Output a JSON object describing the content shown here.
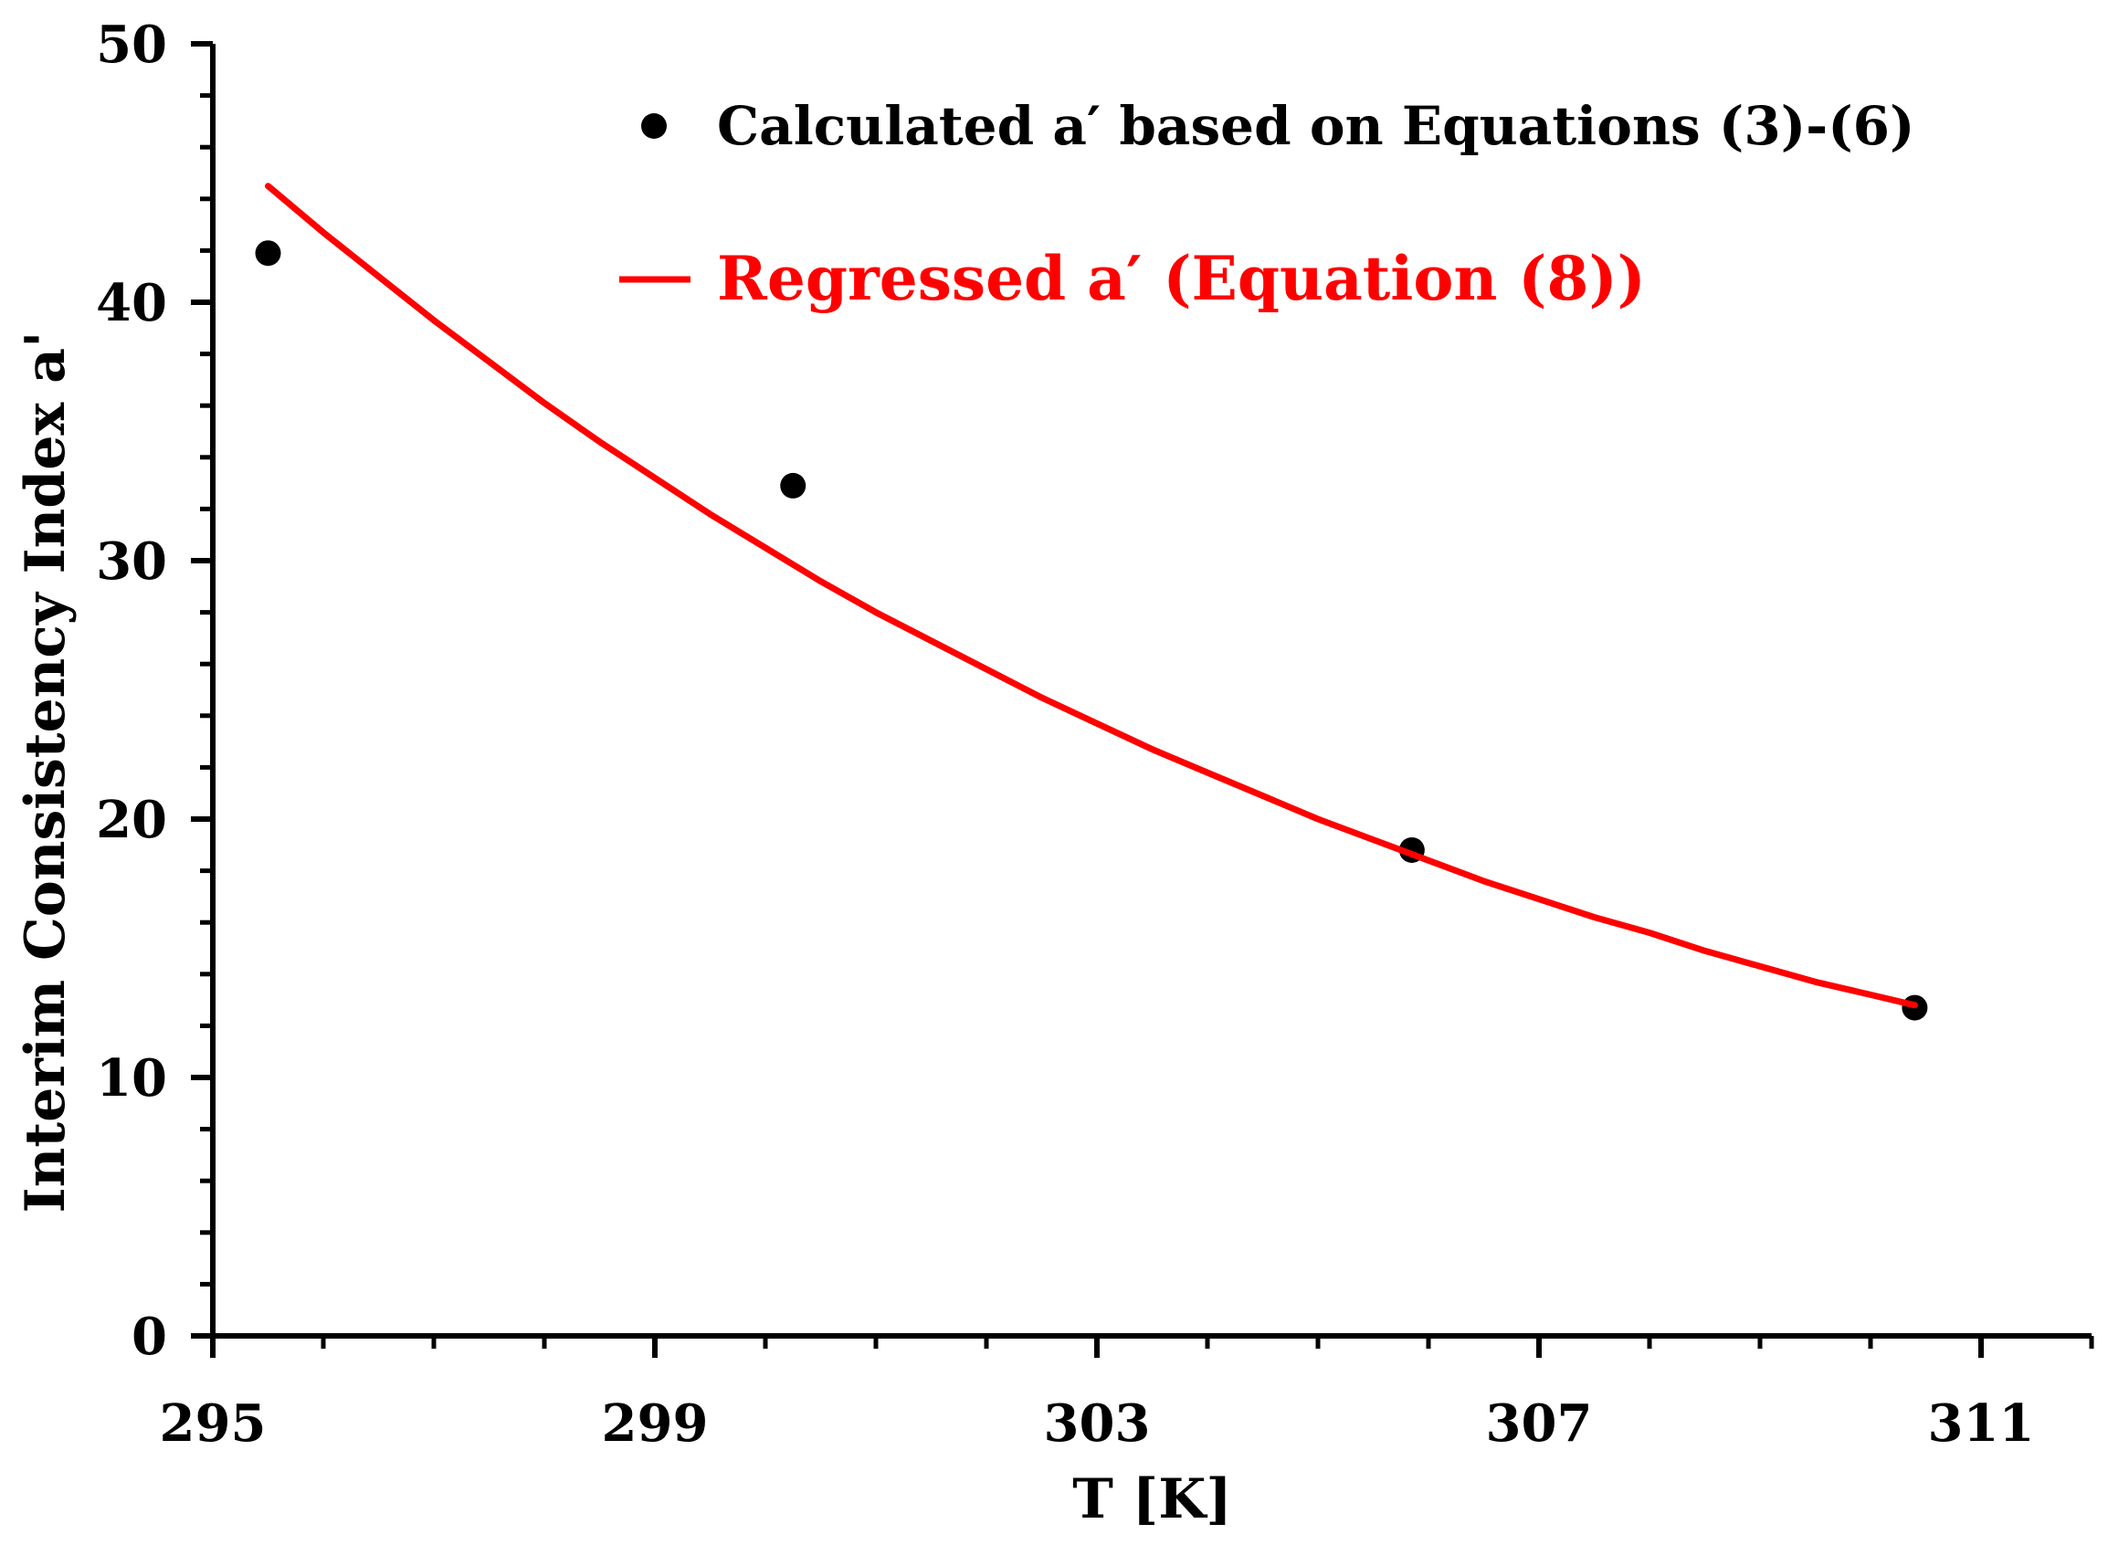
{
  "chart_data": {
    "type": "scatter",
    "title": "",
    "xlabel": "T [K]",
    "ylabel": "Interim Consistency Index a'",
    "xlim": [
      295,
      312
    ],
    "ylim": [
      0,
      50
    ],
    "x_ticks": [
      "295",
      "299",
      "303",
      "307",
      "311"
    ],
    "y_ticks": [
      "0",
      "10",
      "20",
      "30",
      "40",
      "50"
    ],
    "x_minor_step": 1,
    "y_minor_step": 2,
    "series": [
      {
        "name": "Calculated a′ based on Equations (3)-(6)",
        "kind": "points",
        "color": "#000000",
        "x": [
          295.5,
          300.25,
          305.85,
          310.4
        ],
        "y": [
          41.9,
          32.9,
          18.8,
          12.7
        ]
      },
      {
        "name": "Regressed a′ (Equation (8))",
        "kind": "line",
        "color": "#ff0000",
        "x": [
          295.5,
          296,
          296.5,
          297,
          297.5,
          298,
          298.5,
          299,
          299.5,
          300,
          300.5,
          301,
          301.5,
          302,
          302.5,
          303,
          303.5,
          304,
          304.5,
          305,
          305.5,
          306,
          306.5,
          307,
          307.5,
          308,
          308.5,
          309,
          309.5,
          310,
          310.4
        ],
        "y": [
          44.5,
          42.7,
          41.0,
          39.3,
          37.7,
          36.1,
          34.6,
          33.2,
          31.8,
          30.5,
          29.2,
          28.0,
          26.9,
          25.8,
          24.7,
          23.7,
          22.7,
          21.8,
          20.9,
          20.0,
          19.2,
          18.4,
          17.6,
          16.9,
          16.2,
          15.6,
          14.9,
          14.3,
          13.7,
          13.2,
          12.8
        ]
      }
    ],
    "legend": [
      {
        "label": "Calculated a′ based on Equations (3)-(6)",
        "marker": "dot",
        "color": "#000000"
      },
      {
        "label": "Regressed a′ (Equation (8))",
        "marker": "line",
        "color": "#ff0000"
      }
    ],
    "legend_position": "top-center",
    "grid": false
  }
}
